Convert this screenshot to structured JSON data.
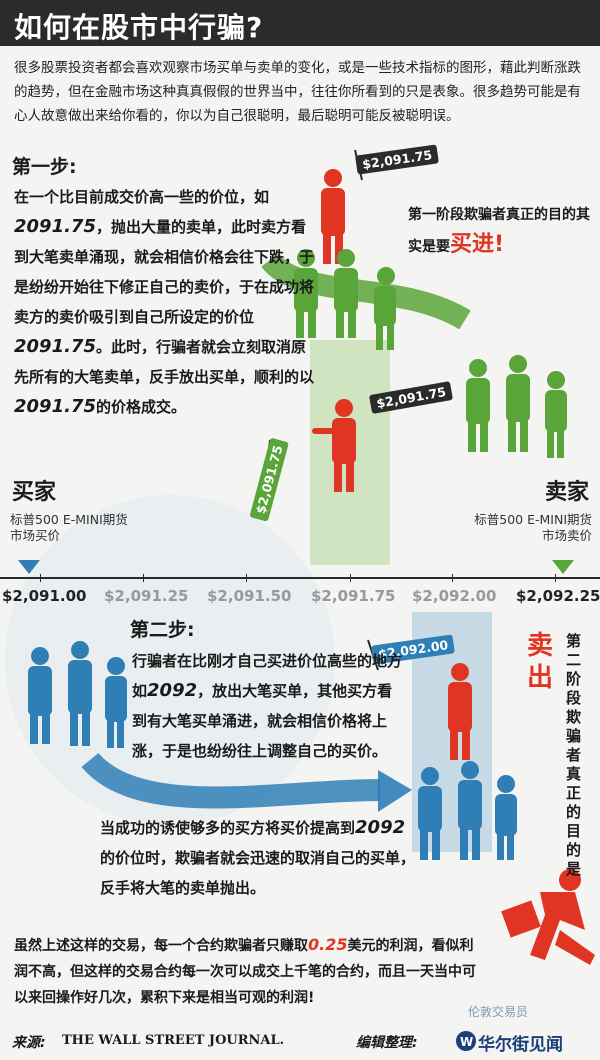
{
  "title": "如何在股市中行骗?",
  "intro": "很多股票投资者都会喜欢观察市场买单与卖单的变化，或是一些技术指标的图形，藉此判断涨跌的趋势，但在金融市场这种真真假假的世界当中，往往你所看到的只是表象。很多趋势可能是有心人故意做出来给你看的，你以为自己很聪明，最后聪明可能反被聪明误。",
  "step1": {
    "heading": "第一步:",
    "t1": "在一个比目前成交价高一些的价位，如",
    "n1": "2091.75",
    "t2": "，抛出大量的卖单，此时卖方看到大笔卖单涌现，就会相信价格会往下跌，于是纷纷开始往下修正自己的卖价，于在成功将卖方的卖价吸引到自己所设定的价位",
    "n2": "2091.75",
    "t3": "。此时，行骗者就会立刻取消原先所有的大笔卖单，反手放出买单，顺利的以",
    "n3": "2091.75",
    "t4": "的价格成交。"
  },
  "stage1_goal": {
    "text": "第一阶段欺骗者真正的目的其实是要",
    "emph": "买进!"
  },
  "tags": {
    "top": "$2,091.75",
    "mid": "$2,091.75",
    "left": "$2,091.75",
    "step2": "$2,092.00"
  },
  "buyer": {
    "title": "买家",
    "sub1": "标普500 E-MINI期货",
    "sub2": "市场买价"
  },
  "seller": {
    "title": "卖家",
    "sub1": "标普500 E-MINI期货",
    "sub2": "市场卖价"
  },
  "prices": [
    "$2,091.00",
    "$2,091.25",
    "$2,091.50",
    "$2,091.75",
    "$2,092.00",
    "$2,092.25"
  ],
  "step2": {
    "heading": "第二步:",
    "t1": "行骗者在比刚才自己买进价位高些的地方如",
    "n1": "2092",
    "t2": "，放出大笔买单，其他买方看到有大笔买单涌进，就会相信价格将上涨，于是也纷纷往上调整自己的买价。",
    "t3": "当成功的诱使够多的买方将买价提高到",
    "n2": "2092",
    "t4": "的价位时，欺骗者就会迅速的取消自己的买单，反手将大笔的卖单抛出。"
  },
  "sell_label": "卖出",
  "stage2_goal": "第二阶段欺骗者真正的目的是",
  "summary": {
    "t1": "虽然上述这样的交易，每一个合约欺骗者只赚取",
    "n1": "0.25",
    "t2": "美元的利润，看似利润不高，但这样的交易合约每一次可以成交上千笔的合约，而且一天当中可以来回操作好几次，累积下来是相当可观的利润!"
  },
  "footer": {
    "source_label": "来源:",
    "source_name": "THE WALL STREET JOURNAL.",
    "editor_label": "编辑整理:",
    "brand": "华尔街见闻",
    "wechat": "伦敦交易员"
  },
  "colors": {
    "red": "#e13524",
    "green": "#5aa53a",
    "blue": "#2f7fb6",
    "dark": "#2b2b2b"
  }
}
